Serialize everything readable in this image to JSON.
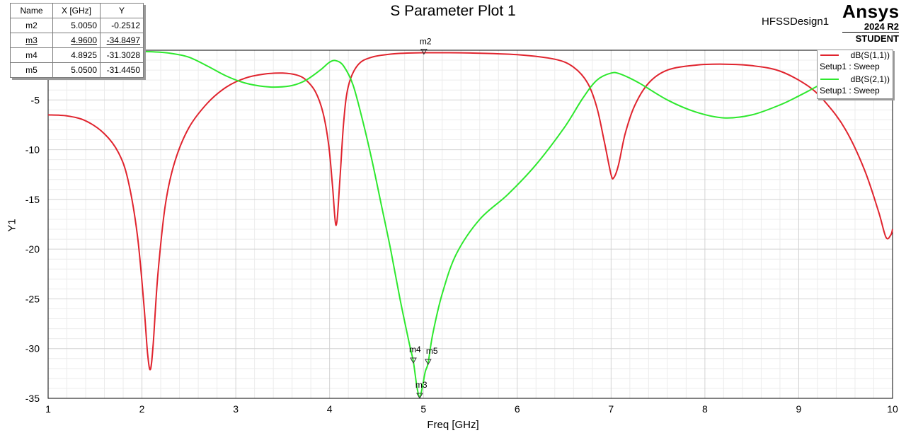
{
  "header": {
    "title": "S Parameter Plot 1",
    "design_name": "HFSSDesign1",
    "brand": "Ansys",
    "version": "2024 R2",
    "edition": "STUDENT"
  },
  "marker_table": {
    "columns": [
      "Name",
      "X [GHz]",
      "Y"
    ],
    "rows": [
      {
        "name": "m2",
        "x": "5.0050",
        "y": "-0.2512"
      },
      {
        "name": "m3",
        "x": "4.9600",
        "y": "-34.8497"
      },
      {
        "name": "m4",
        "x": "4.8925",
        "y": "-31.3028"
      },
      {
        "name": "m5",
        "x": "5.0500",
        "y": "-31.4450"
      }
    ]
  },
  "legend": [
    {
      "name": "dB(S(1,1))",
      "setup": "Setup1 : Sweep"
    },
    {
      "name": "dB(S(2,1))",
      "setup": "Setup1 : Sweep"
    }
  ],
  "chart_data": {
    "type": "line",
    "title": "S Parameter Plot 1",
    "xlabel": "Freq [GHz]",
    "ylabel": "Y1",
    "xlim": [
      1,
      10
    ],
    "ylim": [
      -35,
      0
    ],
    "x_ticks": [
      "1",
      "2",
      "3",
      "4",
      "5",
      "6",
      "7",
      "8",
      "9",
      "10"
    ],
    "y_ticks": [
      "-5",
      "-10",
      "-15",
      "-20",
      "-25",
      "-30",
      "-35"
    ],
    "grid": true,
    "legend_position": "top-right",
    "series": [
      {
        "name": "dB(S(1,1))",
        "color": "#e0242e",
        "points": [
          [
            1.0,
            -6.5
          ],
          [
            1.2,
            -6.6
          ],
          [
            1.4,
            -7.1
          ],
          [
            1.6,
            -8.4
          ],
          [
            1.75,
            -10.3
          ],
          [
            1.85,
            -13.0
          ],
          [
            1.95,
            -18.5
          ],
          [
            2.02,
            -25.5
          ],
          [
            2.06,
            -30.5
          ],
          [
            2.09,
            -32.1
          ],
          [
            2.12,
            -29.5
          ],
          [
            2.17,
            -22.5
          ],
          [
            2.25,
            -15.5
          ],
          [
            2.35,
            -11.2
          ],
          [
            2.5,
            -7.8
          ],
          [
            2.7,
            -5.3
          ],
          [
            2.9,
            -3.7
          ],
          [
            3.1,
            -2.8
          ],
          [
            3.3,
            -2.4
          ],
          [
            3.5,
            -2.3
          ],
          [
            3.65,
            -2.5
          ],
          [
            3.75,
            -3.0
          ],
          [
            3.85,
            -4.2
          ],
          [
            3.93,
            -6.3
          ],
          [
            3.99,
            -9.5
          ],
          [
            4.03,
            -13.5
          ],
          [
            4.07,
            -17.6
          ],
          [
            4.11,
            -13.0
          ],
          [
            4.15,
            -7.2
          ],
          [
            4.2,
            -3.6
          ],
          [
            4.3,
            -1.5
          ],
          [
            4.45,
            -0.7
          ],
          [
            4.7,
            -0.35
          ],
          [
            5.005,
            -0.25
          ],
          [
            5.5,
            -0.28
          ],
          [
            6.0,
            -0.45
          ],
          [
            6.4,
            -0.9
          ],
          [
            6.6,
            -1.7
          ],
          [
            6.75,
            -3.3
          ],
          [
            6.85,
            -5.8
          ],
          [
            6.93,
            -9.3
          ],
          [
            7.0,
            -12.5
          ],
          [
            7.03,
            -12.8
          ],
          [
            7.08,
            -11.5
          ],
          [
            7.15,
            -8.4
          ],
          [
            7.25,
            -5.6
          ],
          [
            7.4,
            -3.3
          ],
          [
            7.6,
            -2.0
          ],
          [
            7.9,
            -1.5
          ],
          [
            8.2,
            -1.4
          ],
          [
            8.5,
            -1.55
          ],
          [
            8.8,
            -2.1
          ],
          [
            9.1,
            -3.6
          ],
          [
            9.3,
            -5.4
          ],
          [
            9.5,
            -8.0
          ],
          [
            9.7,
            -12.0
          ],
          [
            9.85,
            -16.2
          ],
          [
            9.93,
            -18.8
          ],
          [
            9.98,
            -18.6
          ],
          [
            10.0,
            -18.0
          ]
        ]
      },
      {
        "name": "dB(S(2,1))",
        "color": "#2ee82e",
        "points": [
          [
            1.95,
            -0.15
          ],
          [
            2.1,
            -0.15
          ],
          [
            2.3,
            -0.3
          ],
          [
            2.5,
            -0.7
          ],
          [
            2.7,
            -1.6
          ],
          [
            2.9,
            -2.6
          ],
          [
            3.1,
            -3.3
          ],
          [
            3.3,
            -3.65
          ],
          [
            3.45,
            -3.7
          ],
          [
            3.6,
            -3.55
          ],
          [
            3.75,
            -3.0
          ],
          [
            3.9,
            -2.0
          ],
          [
            4.0,
            -1.2
          ],
          [
            4.07,
            -1.05
          ],
          [
            4.15,
            -1.6
          ],
          [
            4.25,
            -3.5
          ],
          [
            4.35,
            -7.0
          ],
          [
            4.45,
            -11.0
          ],
          [
            4.55,
            -15.5
          ],
          [
            4.65,
            -20.0
          ],
          [
            4.75,
            -25.0
          ],
          [
            4.85,
            -29.5
          ],
          [
            4.8925,
            -31.3
          ],
          [
            4.93,
            -33.8
          ],
          [
            4.96,
            -34.85
          ],
          [
            4.99,
            -33.8
          ],
          [
            5.02,
            -32.3
          ],
          [
            5.05,
            -31.45
          ],
          [
            5.1,
            -28.5
          ],
          [
            5.2,
            -24.5
          ],
          [
            5.35,
            -20.5
          ],
          [
            5.6,
            -17.0
          ],
          [
            5.9,
            -14.5
          ],
          [
            6.2,
            -11.5
          ],
          [
            6.5,
            -7.8
          ],
          [
            6.7,
            -4.8
          ],
          [
            6.85,
            -3.0
          ],
          [
            7.0,
            -2.3
          ],
          [
            7.1,
            -2.4
          ],
          [
            7.3,
            -3.3
          ],
          [
            7.6,
            -5.0
          ],
          [
            7.9,
            -6.2
          ],
          [
            8.2,
            -6.8
          ],
          [
            8.5,
            -6.5
          ],
          [
            8.8,
            -5.5
          ],
          [
            9.0,
            -4.6
          ],
          [
            9.2,
            -3.6
          ],
          [
            9.4,
            -2.5
          ],
          [
            9.6,
            -1.6
          ]
        ]
      }
    ],
    "markers": [
      {
        "name": "m2",
        "series": "dB(S(1,1))",
        "x": 5.005,
        "y": -0.2512
      },
      {
        "name": "m3",
        "series": "dB(S(2,1))",
        "x": 4.96,
        "y": -34.8497
      },
      {
        "name": "m4",
        "series": "dB(S(2,1))",
        "x": 4.8925,
        "y": -31.3028
      },
      {
        "name": "m5",
        "series": "dB(S(2,1))",
        "x": 5.05,
        "y": -31.445
      }
    ]
  }
}
